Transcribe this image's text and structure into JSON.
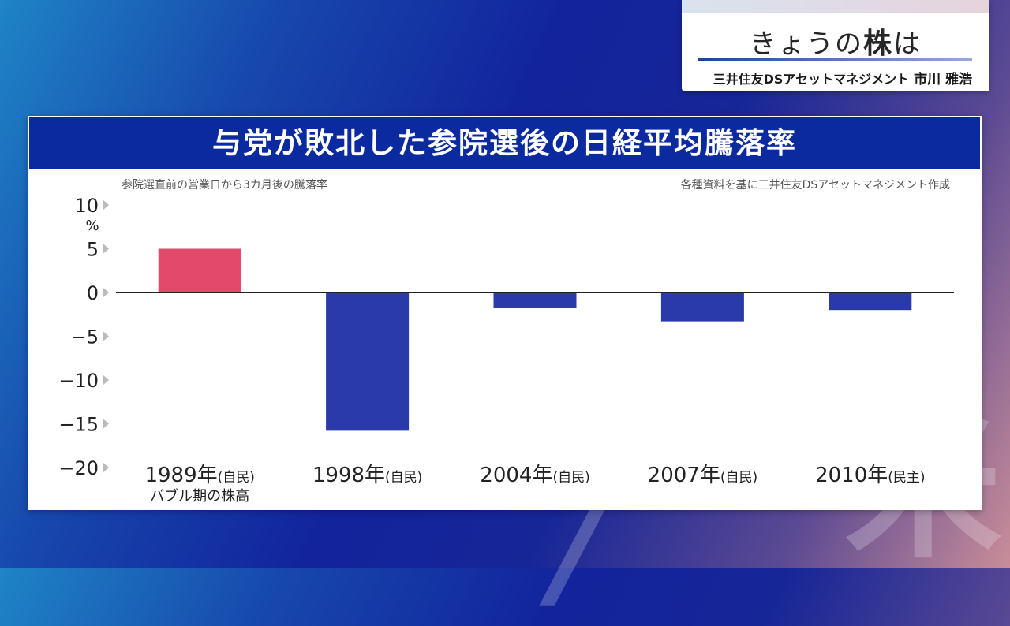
{
  "caption": {
    "title_prefix": "きょうの",
    "title_bold": "株",
    "title_suffix": "は",
    "organization": "三井住友DSアセットマネジメント",
    "person": "市川 雅浩"
  },
  "panel": {
    "header": "与党が敗北した参院選後の日経平均騰落率",
    "note_left": "参院選直前の営業日から3カ月後の騰落率",
    "note_right": "各種資料を基に三井住友DSアセットマネジメント作成"
  },
  "chart_data": {
    "type": "bar",
    "title": "与党が敗北した参院選後の日経平均騰落率",
    "ylabel": "%",
    "ylim": [
      -20,
      10
    ],
    "yticks": [
      {
        "value": 10,
        "label": "10"
      },
      {
        "value": 5,
        "label": "5"
      },
      {
        "value": 0,
        "label": "0"
      },
      {
        "value": -5,
        "label": "−5"
      },
      {
        "value": -10,
        "label": "−10"
      },
      {
        "value": -15,
        "label": "−15"
      },
      {
        "value": -20,
        "label": "−20"
      }
    ],
    "categories": [
      {
        "year": "1989年",
        "party": "(自民)",
        "note": "バブル期の株高"
      },
      {
        "year": "1998年",
        "party": "(自民)",
        "note": ""
      },
      {
        "year": "2004年",
        "party": "(自民)",
        "note": ""
      },
      {
        "year": "2007年",
        "party": "(自民)",
        "note": ""
      },
      {
        "year": "2010年",
        "party": "(民主)",
        "note": ""
      }
    ],
    "values": [
      5.0,
      -15.8,
      -1.8,
      -3.3,
      -2.0
    ],
    "colors": {
      "positive": "#e2496a",
      "negative": "#2a3aa8"
    }
  }
}
